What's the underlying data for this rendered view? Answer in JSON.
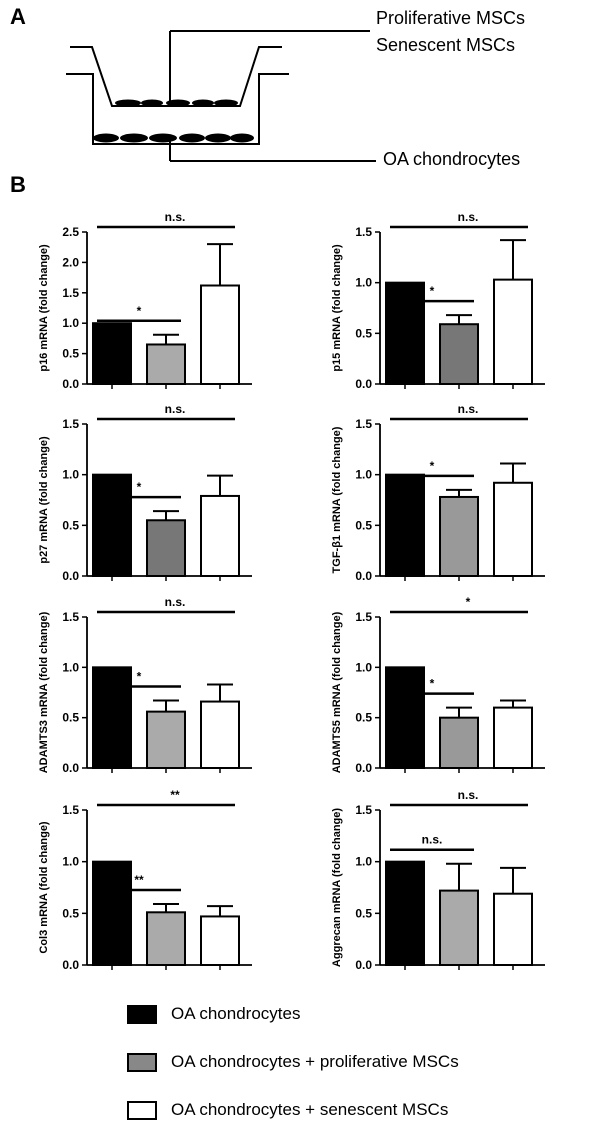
{
  "panel_labels": {
    "a": "A",
    "b": "B"
  },
  "schematic": {
    "proliferative_label": "Proliferative MSCs",
    "senescent_label": "Senescent MSCs",
    "chondrocyte_label": "OA chondrocytes"
  },
  "legend": {
    "items": [
      {
        "label": "OA chondrocytes",
        "color": "#000000"
      },
      {
        "label": "OA chondrocytes + proliferative MSCs",
        "color": "#888888"
      },
      {
        "label": "OA chondrocytes + senescent MSCs",
        "color": "#ffffff"
      }
    ]
  },
  "colors": {
    "bar_black": "#000000",
    "bar_gray": "#888888",
    "bar_white": "#ffffff"
  },
  "chart_data": [
    {
      "type": "bar",
      "ylabel": "p16 mRNA (fold change)",
      "ylim": [
        0,
        2.5
      ],
      "yticks": [
        "0.0",
        "0.5",
        "1.0",
        "1.5",
        "2.0",
        "2.5"
      ],
      "tick_values": [
        0,
        0.5,
        1.0,
        1.5,
        2.0,
        2.5
      ],
      "values": [
        1.0,
        0.65,
        1.62
      ],
      "errors": [
        0,
        0.16,
        0.68
      ],
      "bar_fills": [
        "#000000",
        "#aaaaaa",
        "#ffffff"
      ],
      "sig_short": "*",
      "sig_long": "n.s."
    },
    {
      "type": "bar",
      "ylabel": "p15 mRNA (fold change)",
      "ylim": [
        0,
        1.5
      ],
      "yticks": [
        "0.0",
        "0.5",
        "1.0",
        "1.5"
      ],
      "tick_values": [
        0,
        0.5,
        1.0,
        1.5
      ],
      "values": [
        1.0,
        0.59,
        1.03
      ],
      "errors": [
        0,
        0.09,
        0.39
      ],
      "bar_fills": [
        "#000000",
        "#777777",
        "#ffffff"
      ],
      "sig_short": "*",
      "sig_long": "n.s."
    },
    {
      "type": "bar",
      "ylabel": "p27 mRNA (fold change)",
      "ylim": [
        0,
        1.5
      ],
      "yticks": [
        "0.0",
        "0.5",
        "1.0",
        "1.5"
      ],
      "tick_values": [
        0,
        0.5,
        1.0,
        1.5
      ],
      "values": [
        1.0,
        0.55,
        0.79
      ],
      "errors": [
        0,
        0.09,
        0.2
      ],
      "bar_fills": [
        "#000000",
        "#777777",
        "#ffffff"
      ],
      "sig_short": "*",
      "sig_long": "n.s."
    },
    {
      "type": "bar",
      "ylabel": "TGF-β1 mRNA (fold change)",
      "ylim": [
        0,
        1.5
      ],
      "yticks": [
        "0.0",
        "0.5",
        "1.0",
        "1.5"
      ],
      "tick_values": [
        0,
        0.5,
        1.0,
        1.5
      ],
      "values": [
        1.0,
        0.78,
        0.92
      ],
      "errors": [
        0,
        0.07,
        0.19
      ],
      "bar_fills": [
        "#000000",
        "#999999",
        "#ffffff"
      ],
      "sig_short": "*",
      "sig_long": "n.s."
    },
    {
      "type": "bar",
      "ylabel": "ADAMTS3 mRNA (fold change)",
      "ylim": [
        0,
        1.5
      ],
      "yticks": [
        "0.0",
        "0.5",
        "1.0",
        "1.5"
      ],
      "tick_values": [
        0,
        0.5,
        1.0,
        1.5
      ],
      "values": [
        1.0,
        0.56,
        0.66
      ],
      "errors": [
        0,
        0.11,
        0.17
      ],
      "bar_fills": [
        "#000000",
        "#aaaaaa",
        "#ffffff"
      ],
      "sig_short": "*",
      "sig_long": "n.s."
    },
    {
      "type": "bar",
      "ylabel": "ADAMTS5 mRNA (fold change)",
      "ylim": [
        0,
        1.5
      ],
      "yticks": [
        "0.0",
        "0.5",
        "1.0",
        "1.5"
      ],
      "tick_values": [
        0,
        0.5,
        1.0,
        1.5
      ],
      "values": [
        1.0,
        0.5,
        0.6
      ],
      "errors": [
        0,
        0.1,
        0.07
      ],
      "bar_fills": [
        "#000000",
        "#999999",
        "#ffffff"
      ],
      "sig_short": "*",
      "sig_long": "*"
    },
    {
      "type": "bar",
      "ylabel": "Col3 mRNA (fold change)",
      "ylim": [
        0,
        1.5
      ],
      "yticks": [
        "0.0",
        "0.5",
        "1.0",
        "1.5"
      ],
      "tick_values": [
        0,
        0.5,
        1.0,
        1.5
      ],
      "values": [
        1.0,
        0.51,
        0.47
      ],
      "errors": [
        0,
        0.08,
        0.1
      ],
      "bar_fills": [
        "#000000",
        "#aaaaaa",
        "#ffffff"
      ],
      "sig_short": "**",
      "sig_long": "**"
    },
    {
      "type": "bar",
      "ylabel": "Aggrecan mRNA (fold change)",
      "ylim": [
        0,
        1.5
      ],
      "yticks": [
        "0.0",
        "0.5",
        "1.0",
        "1.5"
      ],
      "tick_values": [
        0,
        0.5,
        1.0,
        1.5
      ],
      "values": [
        1.0,
        0.72,
        0.69
      ],
      "errors": [
        0,
        0.26,
        0.25
      ],
      "bar_fills": [
        "#000000",
        "#aaaaaa",
        "#ffffff"
      ],
      "sig_short": "n.s.",
      "sig_long": "n.s."
    }
  ]
}
